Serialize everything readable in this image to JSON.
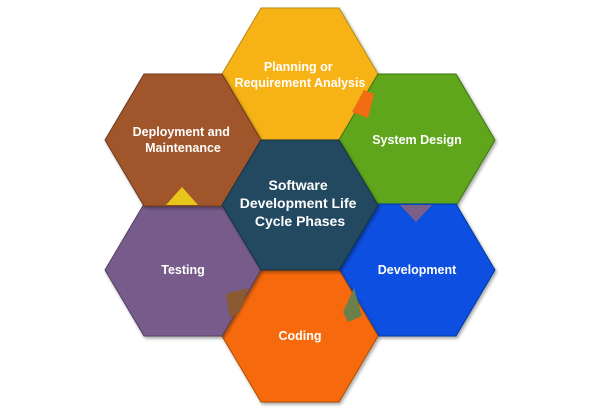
{
  "center": {
    "lines": [
      "Software",
      "Development Life",
      "Cycle Phases"
    ],
    "color": "#234a61"
  },
  "phases": [
    {
      "id": "planning",
      "lines": [
        "Planning or",
        "Requirement Analysis"
      ],
      "color": "#f7b213"
    },
    {
      "id": "system-design",
      "lines": [
        "System Design"
      ],
      "color": "#5fa61b"
    },
    {
      "id": "development",
      "lines": [
        "Development"
      ],
      "color": "#0750e1"
    },
    {
      "id": "coding",
      "lines": [
        "Coding"
      ],
      "color": "#f66a08"
    },
    {
      "id": "testing",
      "lines": [
        "Testing"
      ],
      "color": "#775b8b"
    },
    {
      "id": "deployment",
      "lines": [
        "Deployment and",
        "Maintenance"
      ],
      "color": "#a1542c"
    }
  ],
  "accents": {
    "planning": "#f16c12",
    "system-design": "#7a5f86",
    "development": "#6a7f4a",
    "coding": "#8b5a33",
    "deployment": "#e8c51a"
  }
}
